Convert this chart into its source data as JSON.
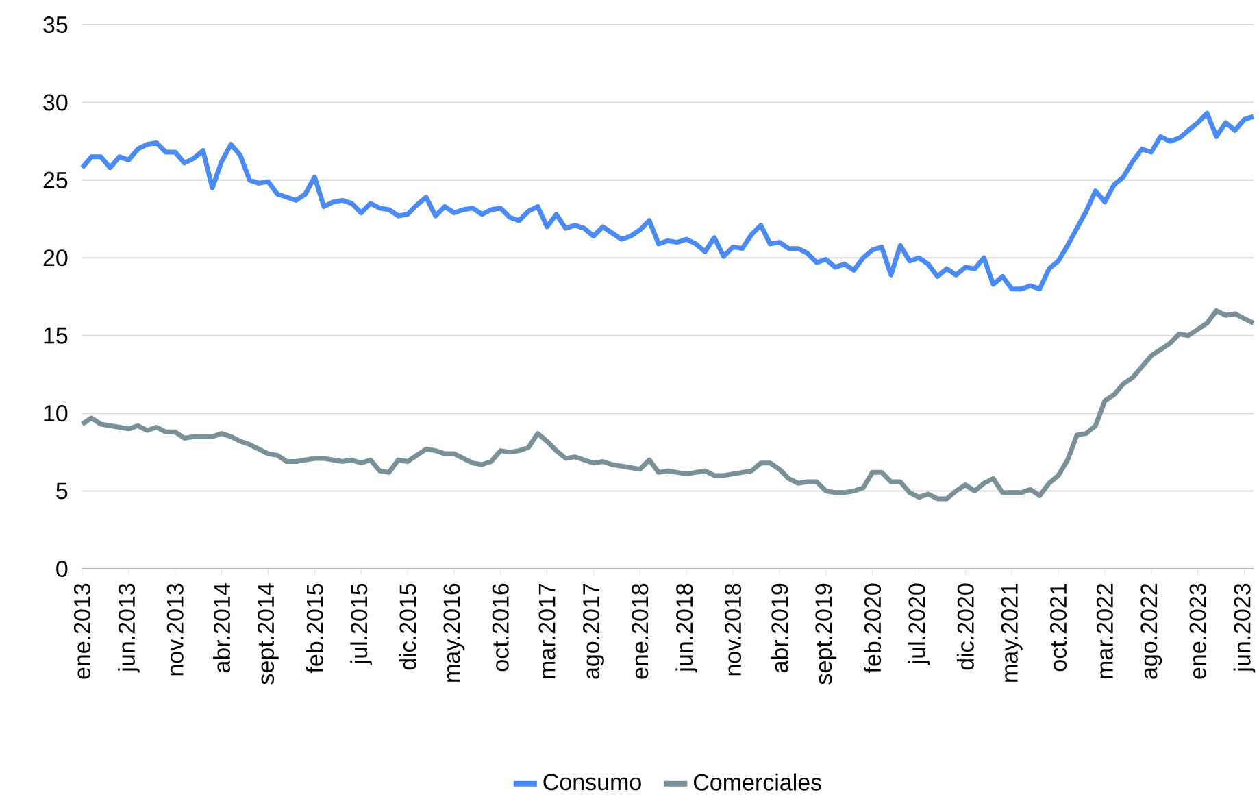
{
  "chart_data": {
    "type": "line",
    "categories": [
      "ene.2013",
      null,
      null,
      null,
      null,
      "jun.2013",
      null,
      null,
      null,
      null,
      "nov.2013",
      null,
      null,
      null,
      null,
      "abr.2014",
      null,
      null,
      null,
      null,
      "sept.2014",
      null,
      null,
      null,
      null,
      "feb.2015",
      null,
      null,
      null,
      null,
      "jul.2015",
      null,
      null,
      null,
      null,
      "dic.2015",
      null,
      null,
      null,
      null,
      "may.2016",
      null,
      null,
      null,
      null,
      "oct.2016",
      null,
      null,
      null,
      null,
      "mar.2017",
      null,
      null,
      null,
      null,
      "ago.2017",
      null,
      null,
      null,
      null,
      "ene.2018",
      null,
      null,
      null,
      null,
      "jun.2018",
      null,
      null,
      null,
      null,
      "nov.2018",
      null,
      null,
      null,
      null,
      "abr.2019",
      null,
      null,
      null,
      null,
      "sept.2019",
      null,
      null,
      null,
      null,
      "feb.2020",
      null,
      null,
      null,
      null,
      "jul.2020",
      null,
      null,
      null,
      null,
      "dic.2020",
      null,
      null,
      null,
      null,
      "may.2021",
      null,
      null,
      null,
      null,
      "oct.2021",
      null,
      null,
      null,
      null,
      "mar.2022",
      null,
      null,
      null,
      null,
      "ago.2022",
      null,
      null,
      null,
      null,
      "ene.2023",
      null,
      null,
      null,
      null,
      "jun.2023",
      null
    ],
    "series": [
      {
        "name": "Consumo",
        "color": "#4a8af4",
        "values": [
          25.8,
          26.5,
          26.5,
          25.8,
          26.5,
          26.3,
          27.0,
          27.3,
          27.4,
          26.8,
          26.8,
          26.1,
          26.4,
          26.9,
          24.5,
          26.2,
          27.3,
          26.6,
          25.0,
          24.8,
          24.9,
          24.1,
          23.9,
          23.7,
          24.1,
          25.2,
          23.3,
          23.6,
          23.7,
          23.5,
          22.9,
          23.5,
          23.2,
          23.1,
          22.7,
          22.8,
          23.4,
          23.9,
          22.7,
          23.3,
          22.9,
          23.1,
          23.2,
          22.8,
          23.1,
          23.2,
          22.6,
          22.4,
          23.0,
          23.3,
          22.0,
          22.8,
          21.9,
          22.1,
          21.9,
          21.4,
          22.0,
          21.6,
          21.2,
          21.4,
          21.8,
          22.4,
          20.9,
          21.1,
          21.0,
          21.2,
          20.9,
          20.4,
          21.3,
          20.1,
          20.7,
          20.6,
          21.5,
          22.1,
          20.9,
          21.0,
          20.6,
          20.6,
          20.3,
          19.7,
          19.9,
          19.4,
          19.6,
          19.2,
          20.0,
          20.5,
          20.7,
          18.9,
          20.8,
          19.8,
          20.0,
          19.6,
          18.8,
          19.3,
          18.9,
          19.4,
          19.3,
          20.0,
          18.3,
          18.8,
          18.0,
          18.0,
          18.2,
          18.0,
          19.3,
          19.8,
          20.8,
          21.9,
          23.0,
          24.3,
          23.6,
          24.7,
          25.2,
          26.2,
          27.0,
          26.8,
          27.8,
          27.5,
          27.7,
          28.2,
          28.7,
          29.3,
          27.8,
          28.7,
          28.2,
          28.9,
          29.1
        ]
      },
      {
        "name": "Comerciales",
        "color": "#7a9099",
        "values": [
          9.3,
          9.7,
          9.3,
          9.2,
          9.1,
          9.0,
          9.2,
          8.9,
          9.1,
          8.8,
          8.8,
          8.4,
          8.5,
          8.5,
          8.5,
          8.7,
          8.5,
          8.2,
          8.0,
          7.7,
          7.4,
          7.3,
          6.9,
          6.9,
          7.0,
          7.1,
          7.1,
          7.0,
          6.9,
          7.0,
          6.8,
          7.0,
          6.3,
          6.2,
          7.0,
          6.9,
          7.3,
          7.7,
          7.6,
          7.4,
          7.4,
          7.1,
          6.8,
          6.7,
          6.9,
          7.6,
          7.5,
          7.6,
          7.8,
          8.7,
          8.2,
          7.6,
          7.1,
          7.2,
          7.0,
          6.8,
          6.9,
          6.7,
          6.6,
          6.5,
          6.4,
          7.0,
          6.2,
          6.3,
          6.2,
          6.1,
          6.2,
          6.3,
          6.0,
          6.0,
          6.1,
          6.2,
          6.3,
          6.8,
          6.8,
          6.4,
          5.8,
          5.5,
          5.6,
          5.6,
          5.0,
          4.9,
          4.9,
          5.0,
          5.2,
          6.2,
          6.2,
          5.6,
          5.6,
          4.9,
          4.6,
          4.8,
          4.5,
          4.5,
          5.0,
          5.4,
          5.0,
          5.5,
          5.8,
          4.9,
          4.9,
          4.9,
          5.1,
          4.7,
          5.5,
          6.0,
          7.0,
          8.6,
          8.7,
          9.2,
          10.8,
          11.2,
          11.9,
          12.3,
          13.0,
          13.7,
          14.1,
          14.5,
          15.1,
          15.0,
          15.4,
          15.8,
          16.6,
          16.3,
          16.4,
          16.1,
          15.8
        ]
      }
    ],
    "ylim": [
      0,
      35
    ],
    "yticks": [
      0,
      5,
      10,
      15,
      20,
      25,
      30,
      35
    ],
    "grid": "y",
    "legend": "bottom",
    "marker": "none",
    "line_style": "solid"
  }
}
